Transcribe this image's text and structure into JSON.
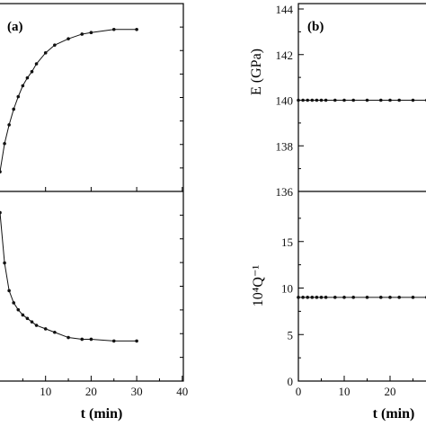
{
  "chart_data": [
    {
      "panel": "(a)",
      "type": "line",
      "subplots": [
        {
          "name": "upper",
          "ylabel": "",
          "series": [
            {
              "x": [
                0,
                1,
                2,
                3,
                4,
                5,
                6,
                7,
                8,
                10,
                12,
                15,
                18,
                20,
                25,
                30
              ],
              "y": [
                0.08,
                0.26,
                0.38,
                0.48,
                0.56,
                0.63,
                0.68,
                0.72,
                0.77,
                0.84,
                0.89,
                0.93,
                0.96,
                0.97,
                0.99,
                0.99
              ]
            }
          ]
        },
        {
          "name": "lower",
          "ylabel": "",
          "series": [
            {
              "x": [
                0,
                1,
                2,
                3,
                4,
                5,
                6,
                7,
                8,
                10,
                12,
                15,
                18,
                20,
                25,
                30
              ],
              "y": [
                0.94,
                0.65,
                0.49,
                0.42,
                0.38,
                0.35,
                0.33,
                0.31,
                0.29,
                0.27,
                0.25,
                0.22,
                0.21,
                0.21,
                0.2,
                0.2
              ]
            }
          ]
        }
      ],
      "xlabel": "t (min)",
      "xticks": [
        "10",
        "20",
        "30",
        "40"
      ],
      "xlim": [
        0,
        40
      ],
      "grid": false
    },
    {
      "panel": "(b)",
      "type": "line",
      "subplots": [
        {
          "name": "E",
          "ylabel": "E (GPa)",
          "ylim": [
            136,
            144
          ],
          "yticks": [
            "136",
            "138",
            "140",
            "142",
            "144"
          ],
          "series": [
            {
              "x": [
                0,
                1,
                2,
                3,
                4,
                5,
                6,
                8,
                10,
                12,
                15,
                18,
                20,
                22,
                25,
                28
              ],
              "y": [
                140,
                140,
                140,
                140,
                140,
                140,
                140,
                140,
                140,
                140,
                140,
                140,
                140,
                140,
                140,
                140
              ]
            }
          ]
        },
        {
          "name": "Q",
          "ylabel": "10⁴Q⁻¹",
          "ylim": [
            0,
            20
          ],
          "yticks": [
            "0",
            "5",
            "10",
            "15"
          ],
          "series": [
            {
              "x": [
                0,
                1,
                2,
                3,
                4,
                5,
                6,
                8,
                10,
                12,
                15,
                18,
                20,
                22,
                25,
                28
              ],
              "y": [
                9,
                9,
                9,
                9,
                9,
                9,
                9,
                9,
                9,
                9,
                9,
                9,
                9,
                9,
                9,
                9
              ]
            }
          ]
        }
      ],
      "xlabel": "t (min)",
      "xticks": [
        "0",
        "10",
        "20"
      ],
      "xlim": [
        0,
        40
      ],
      "grid": false
    }
  ]
}
